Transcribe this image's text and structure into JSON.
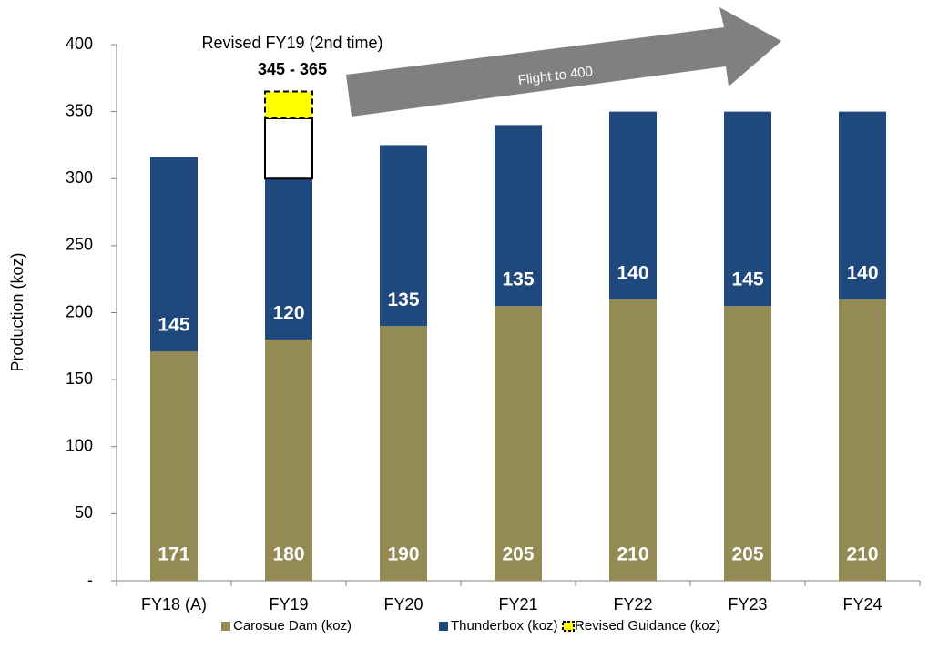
{
  "chart_data": {
    "type": "stacked_bar",
    "y_label": "Production (koz)",
    "annotations": [
      "Revised FY19 (2nd time)",
      "345 - 365",
      "Flight to 400"
    ],
    "categories": [
      "FY18 (A)",
      "FY19",
      "FY20",
      "FY21",
      "FY22",
      "FY23",
      "FY24"
    ],
    "series": [
      {
        "name": "Carosue Dam (koz)",
        "color": "#948a54",
        "labels": true,
        "values": [
          171,
          180,
          190,
          205,
          210,
          205,
          210
        ]
      },
      {
        "name": "Thunderbox (koz)",
        "color": "#1f497d",
        "labels": true,
        "values": [
          145,
          120,
          135,
          135,
          140,
          145,
          140
        ]
      },
      {
        "color": "#ffffff",
        "border": "#000000",
        "values": [
          null,
          45,
          null,
          null,
          null,
          null,
          null
        ]
      },
      {
        "name": "Revised Guidance (koz)",
        "color": "#ffff00",
        "border": "#000000",
        "dashed": true,
        "values": [
          null,
          20,
          null,
          null,
          null,
          null,
          null
        ]
      }
    ],
    "ylim": [
      0,
      400
    ],
    "yticks": [
      {
        "value": 0,
        "label": "-"
      },
      50,
      100,
      150,
      200,
      250,
      300,
      350,
      400
    ],
    "grid": false
  }
}
